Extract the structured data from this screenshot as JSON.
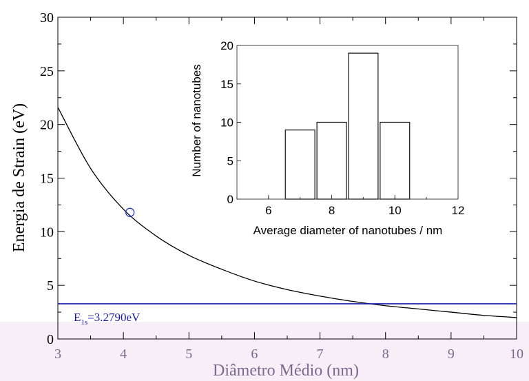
{
  "chart_data": [
    {
      "type": "line",
      "xlabel": "Diâmetro Médio (nm)",
      "ylabel": "Energia de Strain (eV)",
      "xlim": [
        3,
        10
      ],
      "ylim": [
        0,
        30
      ],
      "xticks": [
        "3",
        "4",
        "5",
        "6",
        "7",
        "8",
        "9",
        "10"
      ],
      "yticks": [
        "0",
        "5",
        "10",
        "15",
        "20",
        "25",
        "30"
      ],
      "grid": false,
      "series": [
        {
          "kind": "curve",
          "x": [
            3.0,
            3.5,
            4.0,
            4.5,
            5.0,
            5.5,
            6.0,
            6.5,
            7.0,
            7.5,
            8.0,
            8.5,
            9.0,
            9.5,
            10.0
          ],
          "y": [
            21.6,
            15.9,
            12.1,
            9.6,
            7.8,
            6.5,
            5.4,
            4.6,
            4.0,
            3.5,
            3.1,
            2.8,
            2.5,
            2.2,
            2.0
          ],
          "color": "#000000"
        },
        {
          "kind": "marker",
          "x": [
            4.1
          ],
          "y": [
            11.8
          ],
          "color": "#2233bb"
        },
        {
          "kind": "hline",
          "y": 3.279,
          "color": "#1a1aaa"
        }
      ],
      "annotations": [
        {
          "text_main": "E",
          "text_sub": "1s",
          "text_rest": "=3.2790eV",
          "color": "#1a1aaa"
        }
      ]
    },
    {
      "type": "bar",
      "xlabel": "Average diameter of nanotubes / nm",
      "ylabel": "Number of nanotubes",
      "xlim": [
        5,
        12
      ],
      "ylim": [
        0,
        20
      ],
      "xticks": [
        "6",
        "8",
        "10",
        "12"
      ],
      "yticks": [
        "0",
        "5",
        "10",
        "15",
        "20"
      ],
      "bins": [
        {
          "from": 6.5,
          "to": 7.5,
          "value": 9
        },
        {
          "from": 7.5,
          "to": 8.5,
          "value": 10
        },
        {
          "from": 8.5,
          "to": 9.5,
          "value": 19
        },
        {
          "from": 9.5,
          "to": 10.5,
          "value": 10
        }
      ]
    }
  ]
}
